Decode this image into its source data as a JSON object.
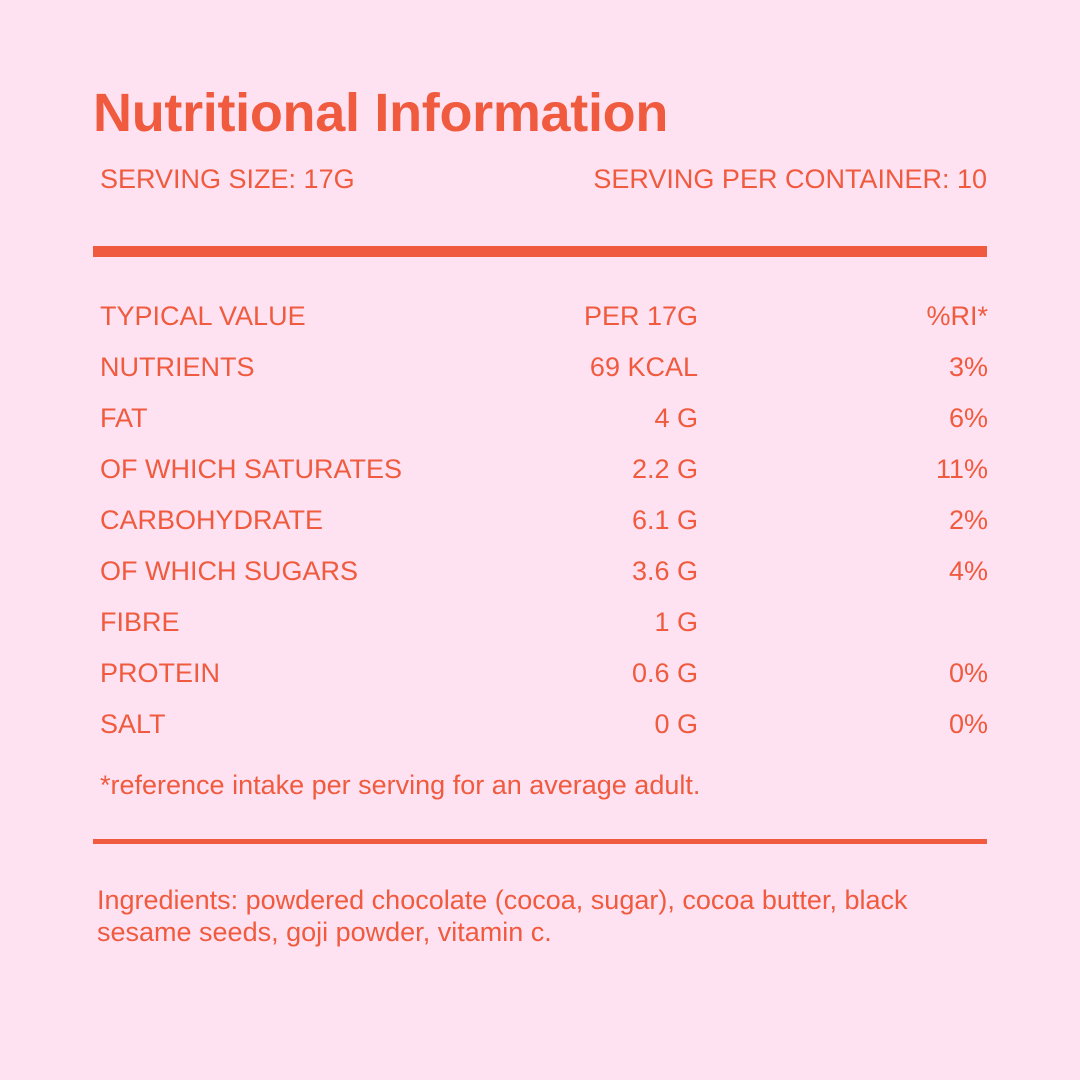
{
  "label": {
    "title": "Nutritional Information",
    "serving_size": "SERVING SIZE: 17G",
    "servings_per_container": "SERVING PER CONTAINER: 10",
    "colors": {
      "background": "#ffe2f1",
      "accent": "#f05a3e"
    }
  },
  "table": {
    "header": {
      "name": "TYPICAL VALUE",
      "amount": "PER 17G",
      "ri": "%RI*"
    },
    "rows": [
      {
        "name": "NUTRIENTS",
        "amount": "69 KCAL",
        "ri": "3%"
      },
      {
        "name": "FAT",
        "amount": "4 G",
        "ri": "6%"
      },
      {
        "name": "OF WHICH SATURATES",
        "amount": "2.2 G",
        "ri": "11%"
      },
      {
        "name": "CARBOHYDRATE",
        "amount": "6.1 G",
        "ri": "2%"
      },
      {
        "name": "OF WHICH SUGARS",
        "amount": "3.6 G",
        "ri": "4%"
      },
      {
        "name": "FIBRE",
        "amount": "1 G",
        "ri": ""
      },
      {
        "name": "PROTEIN",
        "amount": "0.6 G",
        "ri": "0%"
      },
      {
        "name": "SALT",
        "amount": "0 G",
        "ri": "0%"
      }
    ]
  },
  "footnote": "*reference intake per serving for an average adult.",
  "ingredients": "Ingredients: powdered chocolate (cocoa, sugar), cocoa butter, black sesame seeds, goji powder, vitamin c."
}
